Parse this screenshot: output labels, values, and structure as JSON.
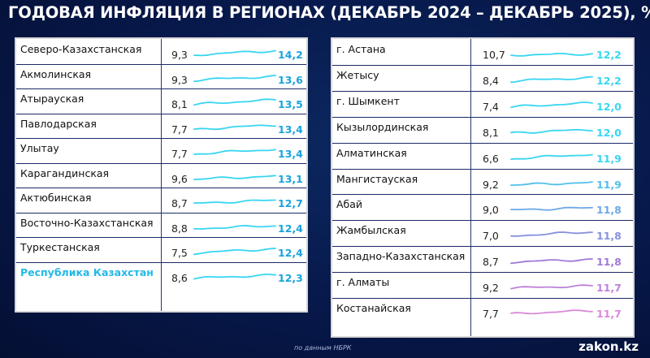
{
  "title": "ГОДОВАЯ ИНФЛЯЦИЯ В РЕГИОНАХ (ДЕКАБРЬ 2024 – ДЕКАБРЬ 2025), %",
  "source": "по данным НБРК",
  "logo": "zakon.kz",
  "colors": {
    "background": "#07184a",
    "highlight_text": "#23b9e6",
    "end_value": "#1aa3dd",
    "line_cyan": "#38d6f0",
    "line_purple": "#a07ad8",
    "line_pink": "#d98ad8"
  },
  "chart_data": {
    "type": "table",
    "columns": [
      "region",
      "december_2024",
      "trend",
      "december_2025"
    ],
    "left_table": [
      {
        "region": "Северо-Казахстанская",
        "start": "9,3",
        "end": "14,2",
        "highlight": false
      },
      {
        "region": "Акмолинская",
        "start": "9,3",
        "end": "13,6",
        "highlight": false
      },
      {
        "region": "Атырауская",
        "start": "8,1",
        "end": "13,5",
        "highlight": false
      },
      {
        "region": "Павлодарская",
        "start": "7,7",
        "end": "13,4",
        "highlight": false
      },
      {
        "region": "Улытау",
        "start": "7,7",
        "end": "13,4",
        "highlight": false
      },
      {
        "region": "Карагандинская",
        "start": "9,6",
        "end": "13,1",
        "highlight": false
      },
      {
        "region": "Актюбинская",
        "start": "8,7",
        "end": "12,7",
        "highlight": false
      },
      {
        "region": "Восточно-Казахстанская",
        "start": "8,8",
        "end": "12,4",
        "highlight": false
      },
      {
        "region": "Туркестанская",
        "start": "7,5",
        "end": "12,4",
        "highlight": false
      },
      {
        "region": "Республика Казахстан",
        "start": "8,6",
        "end": "12,3",
        "highlight": true
      }
    ],
    "right_table": [
      {
        "region": "г. Астана",
        "start": "10,7",
        "end": "12,2",
        "highlight": false
      },
      {
        "region": "Жетысу",
        "start": "8,4",
        "end": "12,2",
        "highlight": false
      },
      {
        "region": "г. Шымкент",
        "start": "7,4",
        "end": "12,0",
        "highlight": false
      },
      {
        "region": "Кызылординская",
        "start": "8,1",
        "end": "12,0",
        "highlight": false
      },
      {
        "region": "Алматинская",
        "start": "6,6",
        "end": "11,9",
        "highlight": false
      },
      {
        "region": "Мангистауская",
        "start": "9,2",
        "end": "11,9",
        "highlight": false
      },
      {
        "region": "Абай",
        "start": "9,0",
        "end": "11,8",
        "highlight": false
      },
      {
        "region": "Жамбылская",
        "start": "7,0",
        "end": "11,8",
        "highlight": false
      },
      {
        "region": "Западно-Казахстанская",
        "start": "8,7",
        "end": "11,8",
        "highlight": false
      },
      {
        "region": "г. Алматы",
        "start": "9,2",
        "end": "11,7",
        "highlight": false
      },
      {
        "region": "Костанайская",
        "start": "7,7",
        "end": "11,7",
        "highlight": false
      }
    ]
  }
}
